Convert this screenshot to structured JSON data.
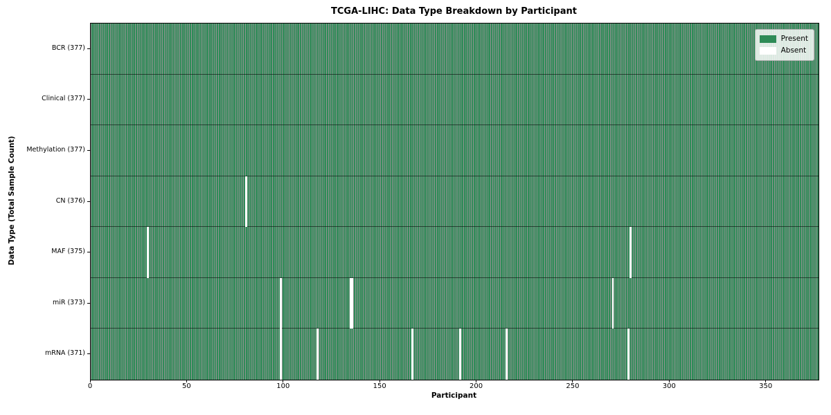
{
  "title": "TCGA-LIHC: Data Type Breakdown by Participant",
  "chart_data": {
    "type": "heatmap",
    "title": "TCGA-LIHC: Data Type Breakdown by Participant",
    "xlabel": "Participant",
    "ylabel": "Data Type (Total Sample Count)",
    "xlim": [
      0,
      377
    ],
    "x_ticks": [
      0,
      50,
      100,
      150,
      200,
      250,
      300,
      350
    ],
    "n_participants": 377,
    "grid": false,
    "legend_position": "upper right",
    "legend": [
      {
        "label": "Present",
        "color": "#2e8b57"
      },
      {
        "label": "Absent",
        "color": "#ffffff"
      }
    ],
    "colors": {
      "present": "#2e8b57",
      "absent": "#ffffff",
      "cell_edge": "rgba(0,0,0,0.42)",
      "row_divider": "rgba(0,0,0,0.55)"
    },
    "rows": [
      {
        "label": "BCR (377)",
        "data_type": "BCR",
        "present_count": 377,
        "absent_participants": []
      },
      {
        "label": "Clinical (377)",
        "data_type": "Clinical",
        "present_count": 377,
        "absent_participants": []
      },
      {
        "label": "Methylation (377)",
        "data_type": "Methylation",
        "present_count": 377,
        "absent_participants": []
      },
      {
        "label": "CN (376)",
        "data_type": "CN",
        "present_count": 376,
        "absent_participants": [
          80
        ]
      },
      {
        "label": "MAF (375)",
        "data_type": "MAF",
        "present_count": 375,
        "absent_participants": [
          29,
          279
        ]
      },
      {
        "label": "miR (373)",
        "data_type": "miR",
        "present_count": 373,
        "absent_participants": [
          98,
          134,
          135,
          270
        ]
      },
      {
        "label": "mRNA (371)",
        "data_type": "mRNA",
        "present_count": 371,
        "absent_participants": [
          98,
          117,
          166,
          191,
          215,
          278
        ]
      }
    ]
  }
}
